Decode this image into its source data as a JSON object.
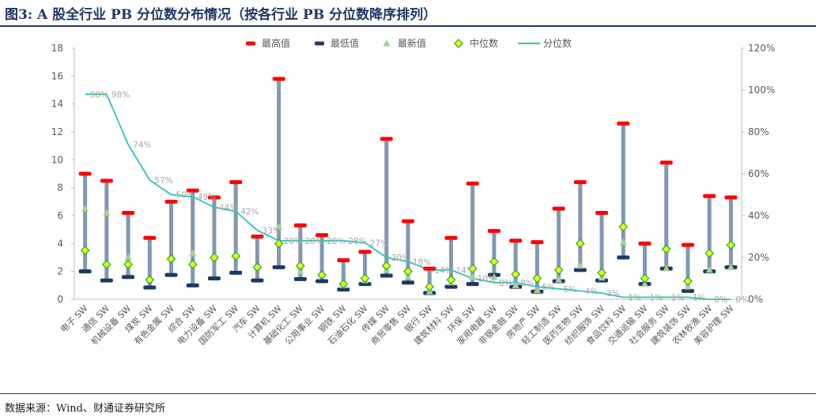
{
  "title": "图3: A 股全行业 PB 分位数分布情况（按各行业 PB 分位数降序排列）",
  "source": "数据来源：Wind、财通证券研究所",
  "colors": {
    "max": "#ff0000",
    "min": "#1f3864",
    "latest": "#a9d18e",
    "median": "#ffff00",
    "median_border": "#00b050",
    "percentile_line": "#2ec4b6",
    "range_bar": "#8497b0",
    "title": "#1f3864"
  },
  "chart_data": {
    "type": "line",
    "legend": [
      "最高值",
      "最低值",
      "最新值",
      "中位数",
      "分位数"
    ],
    "legend_position": "top",
    "grid": false,
    "y_left": {
      "ylim": [
        0,
        18
      ],
      "ticks": [
        "0",
        "2",
        "4",
        "6",
        "8",
        "10",
        "12",
        "14",
        "16",
        "18"
      ]
    },
    "y_right": {
      "ylim": [
        0,
        120
      ],
      "ticks": [
        "0%",
        "20%",
        "40%",
        "60%",
        "80%",
        "100%",
        "120%"
      ]
    },
    "categories": [
      "电子 SW",
      "通信 SW",
      "机械设备 SW",
      "煤炭 SW",
      "有色金属 SW",
      "综合 SW",
      "电力设备 SW",
      "国防军工 SW",
      "汽车 SW",
      "计算机 SW",
      "基础化工 SW",
      "公用事业 SW",
      "钢铁 SW",
      "石油石化 SW",
      "传媒 SW",
      "商贸零售 SW",
      "银行 SW",
      "建筑材料 SW",
      "环保 SW",
      "家用电器 SW",
      "非银金融 SW",
      "房地产 SW",
      "轻工制造 SW",
      "医药生物 SW",
      "纺织服饰 SW",
      "食品饮料 SW",
      "交通运输 SW",
      "社会服务 SW",
      "建筑装饰 SW",
      "农林牧渔 SW",
      "美容护理 SW"
    ],
    "series": [
      {
        "name": "最高值",
        "values": [
          9.0,
          8.5,
          6.2,
          4.4,
          7.0,
          7.8,
          7.3,
          8.4,
          4.5,
          15.8,
          5.3,
          4.6,
          2.8,
          3.4,
          11.5,
          5.6,
          2.2,
          4.4,
          8.3,
          4.9,
          4.2,
          4.1,
          6.5,
          8.4,
          6.2,
          12.6,
          4.0,
          9.8,
          3.9,
          7.4,
          7.3
        ]
      },
      {
        "name": "最低值",
        "values": [
          2.0,
          1.35,
          1.6,
          0.85,
          1.75,
          1.0,
          1.5,
          1.9,
          1.35,
          2.3,
          1.45,
          1.3,
          0.7,
          1.1,
          1.7,
          1.2,
          0.45,
          0.9,
          1.1,
          1.75,
          0.9,
          0.55,
          1.3,
          2.1,
          1.35,
          3.0,
          1.1,
          2.2,
          0.6,
          2.0,
          2.3
        ]
      },
      {
        "name": "最新值",
        "values": [
          6.5,
          6.2,
          3.0,
          1.4,
          3.0,
          3.3,
          3.0,
          3.2,
          2.3,
          5.2,
          2.0,
          1.8,
          1.0,
          1.35,
          2.1,
          1.6,
          0.55,
          1.2,
          1.6,
          1.6,
          1.0,
          0.65,
          1.4,
          2.4,
          1.55,
          4.1,
          1.1,
          2.2,
          0.9,
          2.1,
          2.3
        ]
      },
      {
        "name": "中位数",
        "values": [
          3.5,
          2.5,
          2.5,
          1.4,
          2.9,
          2.5,
          3.0,
          3.1,
          2.3,
          4.0,
          2.4,
          1.75,
          1.1,
          1.5,
          2.4,
          2.0,
          0.9,
          1.4,
          2.2,
          2.7,
          1.8,
          1.5,
          2.1,
          4.0,
          1.9,
          5.2,
          1.5,
          3.6,
          1.3,
          3.3,
          3.9
        ]
      },
      {
        "name": "分位数",
        "values": [
          98,
          98,
          74,
          57,
          50,
          49,
          44,
          42,
          33,
          28,
          28,
          28,
          28,
          27,
          20,
          18,
          14,
          14,
          10,
          8,
          8,
          6,
          5,
          4,
          3,
          1,
          1,
          1,
          1,
          0,
          0
        ],
        "labels": [
          "98%",
          "98%",
          "74%",
          "57%",
          "50%",
          "49%",
          "44%",
          "42%",
          "33%",
          "28%",
          "28%",
          "28%",
          "28%",
          "27%",
          "20%",
          "18%",
          "14%",
          "14%",
          "10%",
          "8%",
          "8%",
          "6%",
          "5%",
          "4%",
          "3%",
          "1%",
          "1%",
          "1%",
          "1%",
          "0%",
          "0%"
        ]
      }
    ]
  }
}
